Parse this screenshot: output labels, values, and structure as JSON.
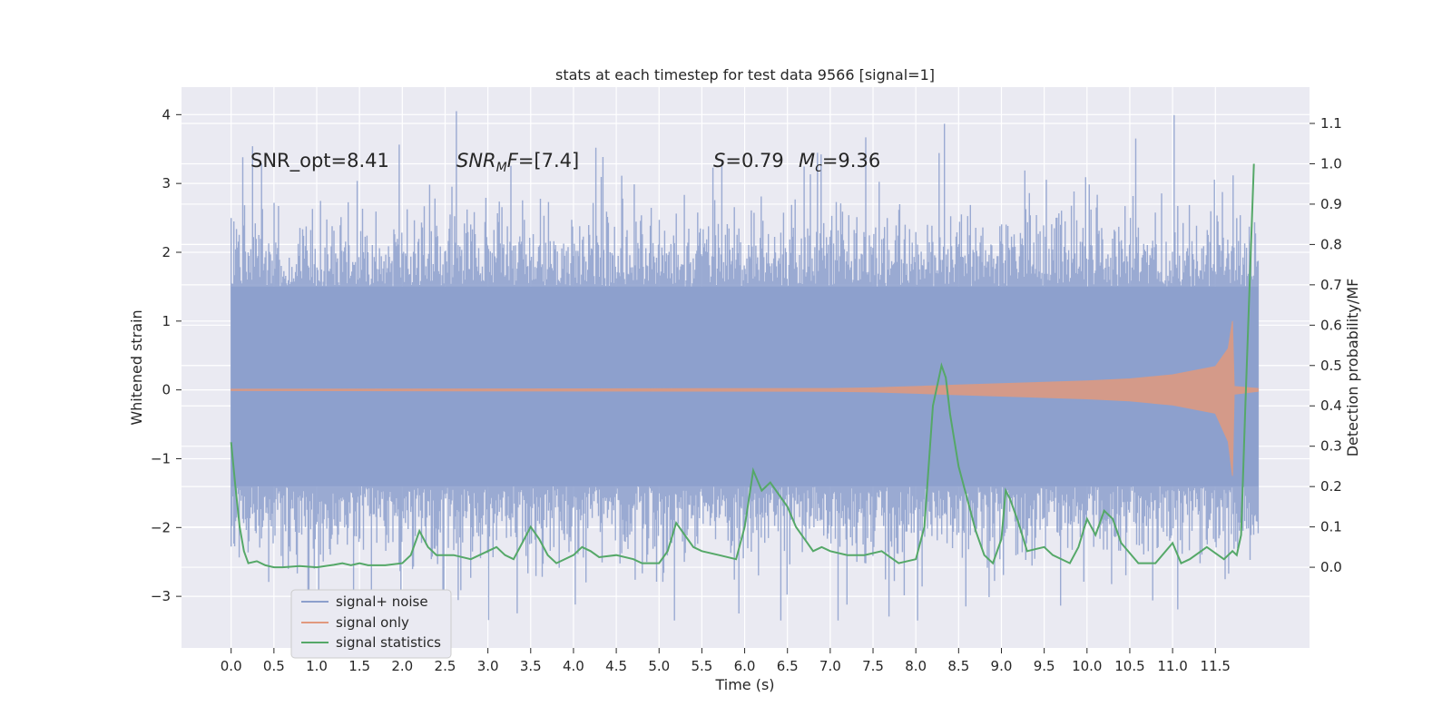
{
  "chart_data": {
    "type": "line",
    "title": "stats at each timestep for test data 9566 [signal=1]",
    "xlabel": "Time (s)",
    "ylabel_left": "Whitened strain",
    "ylabel_right": "Detection probability/MF",
    "x_ticks": [
      "0.0",
      "0.5",
      "1.0",
      "1.5",
      "2.0",
      "2.5",
      "3.0",
      "3.5",
      "4.0",
      "4.5",
      "5.0",
      "5.5",
      "6.0",
      "6.5",
      "7.0",
      "7.5",
      "8.0",
      "8.5",
      "9.0",
      "9.5",
      "10.0",
      "10.5",
      "11.0",
      "11.5"
    ],
    "y_left_ticks": [
      "4",
      "3",
      "2",
      "1",
      "0",
      "−1",
      "−2",
      "−3"
    ],
    "y_right_ticks": [
      "1.1",
      "1.0",
      "0.9",
      "0.8",
      "0.7",
      "0.6",
      "0.5",
      "0.4",
      "0.3",
      "0.2",
      "0.1",
      "0.0"
    ],
    "xlim": [
      -0.58,
      12.6
    ],
    "ylim_left": [
      -3.75,
      4.4
    ],
    "ylim_right": [
      -0.2,
      1.19
    ],
    "grid": true,
    "legend_position": "lower-left",
    "annotations": {
      "snr_opt": "SNR_opt=8.41",
      "snr_mf_sym": "SNR",
      "snr_mf_sub": "M",
      "snr_mf_sym2": "F",
      "snr_mf_val": "=[7.4]",
      "s_sym": "S",
      "s_val": "=0.79",
      "mc_sym": "M",
      "mc_sub": "c",
      "mc_val": "=9.36"
    },
    "series": [
      {
        "name": "signal+ noise",
        "axis": "left",
        "color": "#8c9fcc",
        "description_range": [
          -2.0,
          2.0
        ],
        "x_range": [
          0.0,
          12.0
        ]
      },
      {
        "name": "signal only",
        "axis": "left",
        "color": "#e1997e",
        "envelope_x": [
          0.0,
          7.0,
          7.5,
          8.0,
          8.5,
          9.0,
          9.5,
          10.0,
          10.5,
          11.0,
          11.5,
          11.65,
          11.7,
          11.72,
          12.0
        ],
        "envelope_y": [
          0.01,
          0.02,
          0.03,
          0.05,
          0.07,
          0.09,
          0.11,
          0.13,
          0.16,
          0.22,
          0.34,
          0.6,
          1.0,
          0.05,
          0.02
        ]
      },
      {
        "name": "signal statistics",
        "axis": "right",
        "color": "#55a868",
        "x": [
          0.0,
          0.05,
          0.1,
          0.15,
          0.2,
          0.3,
          0.4,
          0.5,
          0.6,
          0.8,
          1.0,
          1.2,
          1.3,
          1.4,
          1.5,
          1.6,
          1.8,
          2.0,
          2.1,
          2.2,
          2.3,
          2.4,
          2.6,
          2.8,
          3.0,
          3.1,
          3.2,
          3.3,
          3.4,
          3.5,
          3.6,
          3.7,
          3.8,
          4.0,
          4.1,
          4.2,
          4.3,
          4.5,
          4.7,
          4.8,
          5.0,
          5.1,
          5.2,
          5.3,
          5.4,
          5.5,
          5.7,
          5.9,
          6.0,
          6.1,
          6.2,
          6.3,
          6.5,
          6.6,
          6.8,
          6.9,
          7.0,
          7.2,
          7.4,
          7.6,
          7.8,
          8.0,
          8.1,
          8.2,
          8.3,
          8.35,
          8.4,
          8.5,
          8.7,
          8.8,
          8.9,
          9.0,
          9.05,
          9.1,
          9.2,
          9.3,
          9.5,
          9.6,
          9.8,
          9.9,
          10.0,
          10.1,
          10.2,
          10.3,
          10.4,
          10.6,
          10.8,
          11.0,
          11.1,
          11.2,
          11.4,
          11.6,
          11.7,
          11.75,
          11.8,
          11.85,
          11.9,
          11.95
        ],
        "y": [
          0.31,
          0.2,
          0.1,
          0.04,
          0.01,
          0.015,
          0.005,
          0.0,
          0.0,
          0.003,
          0.0,
          0.006,
          0.01,
          0.005,
          0.01,
          0.005,
          0.005,
          0.01,
          0.03,
          0.09,
          0.05,
          0.03,
          0.03,
          0.02,
          0.04,
          0.05,
          0.03,
          0.02,
          0.06,
          0.1,
          0.07,
          0.03,
          0.01,
          0.03,
          0.05,
          0.04,
          0.025,
          0.03,
          0.02,
          0.01,
          0.01,
          0.04,
          0.11,
          0.08,
          0.05,
          0.04,
          0.03,
          0.02,
          0.1,
          0.24,
          0.19,
          0.21,
          0.15,
          0.1,
          0.04,
          0.05,
          0.04,
          0.03,
          0.03,
          0.04,
          0.01,
          0.02,
          0.1,
          0.4,
          0.5,
          0.47,
          0.38,
          0.25,
          0.09,
          0.03,
          0.01,
          0.07,
          0.19,
          0.17,
          0.11,
          0.04,
          0.05,
          0.03,
          0.01,
          0.05,
          0.12,
          0.08,
          0.14,
          0.12,
          0.06,
          0.01,
          0.01,
          0.06,
          0.01,
          0.02,
          0.05,
          0.02,
          0.04,
          0.03,
          0.08,
          0.4,
          0.7,
          1.0
        ]
      }
    ]
  }
}
